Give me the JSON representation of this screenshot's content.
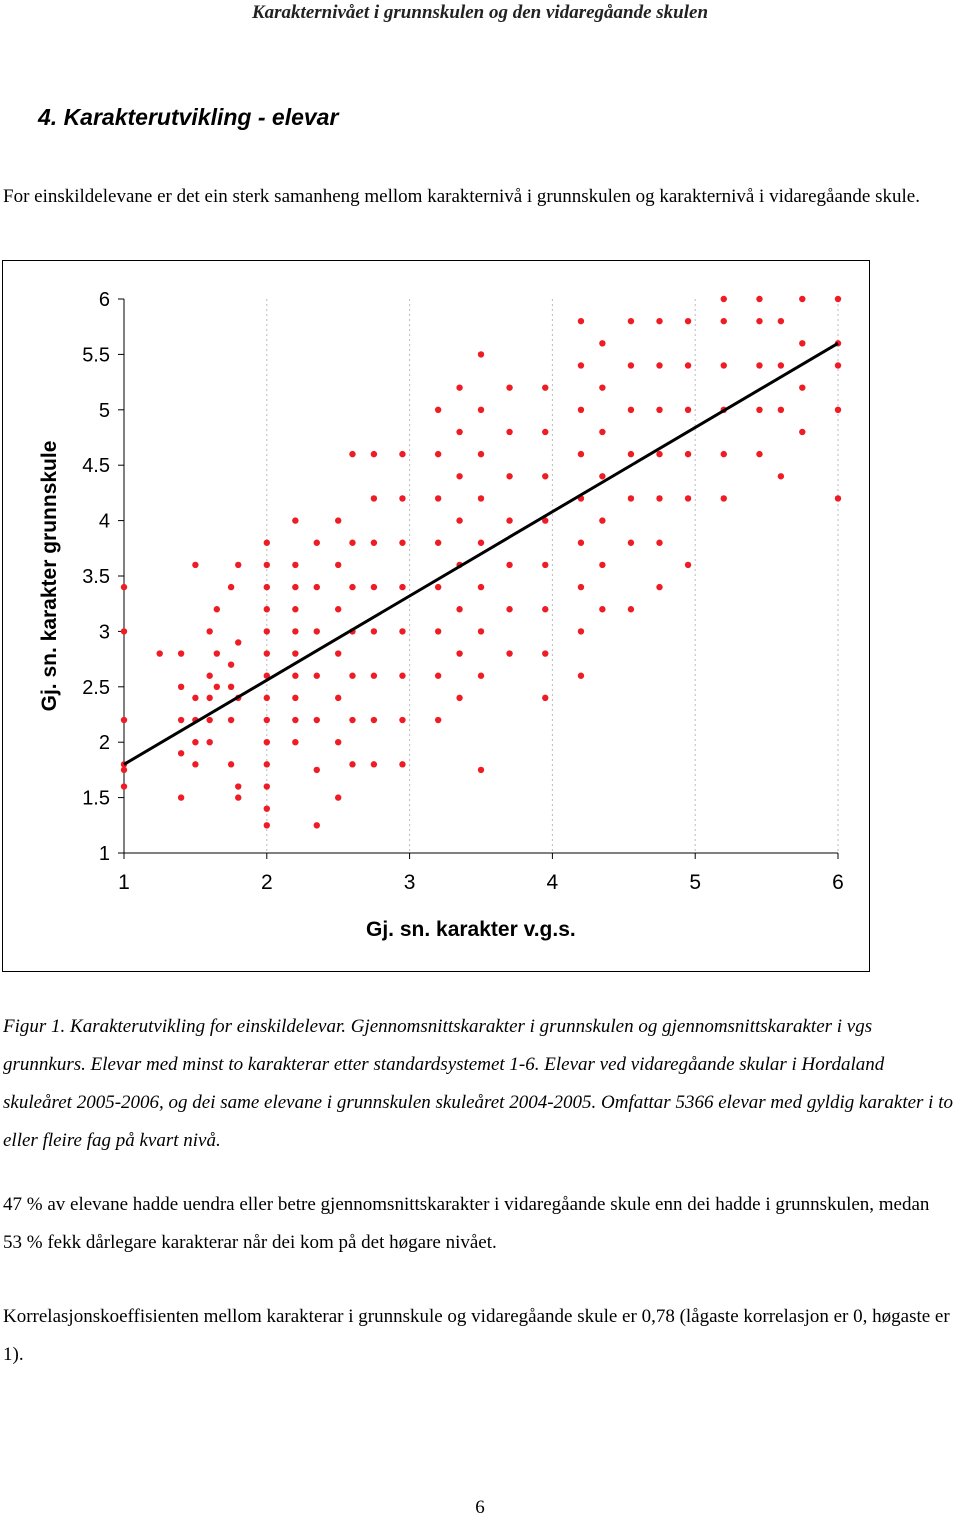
{
  "header": {
    "title": "Karakternivået i grunnskulen og den vidaregåande skulen"
  },
  "heading": "4. Karakterutvikling - elevar",
  "intro": "For einskildelevane er det ein sterk samanheng mellom karakternivå i grunnskulen og karakternivå i vidaregåande skule.",
  "chart_data": {
    "type": "scatter",
    "x_label": "Gj. sn. karakter v.g.s.",
    "y_label": "Gj. sn. karakter grunnskule",
    "xlim": [
      1,
      6
    ],
    "ylim": [
      1,
      6
    ],
    "xticks": [
      1,
      2,
      3,
      4,
      5,
      6
    ],
    "yticks": [
      1,
      1.5,
      2,
      2.5,
      3,
      3.5,
      4,
      4.5,
      5,
      5.5,
      6
    ],
    "grid": true,
    "color": "#ee1c25",
    "x": [
      1,
      1,
      1,
      1,
      1,
      1,
      1.25,
      1.4,
      1.4,
      1.4,
      1.4,
      1.4,
      1.5,
      1.5,
      1.5,
      1.5,
      1.5,
      1.6,
      1.6,
      1.6,
      1.6,
      1.6,
      1.65,
      1.65,
      1.65,
      1.75,
      1.75,
      1.75,
      1.75,
      1.75,
      1.8,
      1.8,
      1.8,
      1.8,
      1.8,
      2,
      2,
      2,
      2,
      2,
      2,
      2,
      2,
      2,
      2,
      2,
      2,
      2,
      2,
      2.2,
      2.2,
      2.2,
      2.2,
      2.2,
      2.2,
      2.2,
      2.2,
      2.2,
      2.2,
      2.35,
      2.35,
      2.35,
      2.35,
      2.35,
      2.35,
      2.35,
      2.5,
      2.5,
      2.5,
      2.5,
      2.5,
      2.5,
      2.5,
      2.6,
      2.6,
      2.6,
      2.6,
      2.6,
      2.6,
      2.6,
      2.75,
      2.75,
      2.75,
      2.75,
      2.75,
      2.75,
      2.75,
      2.75,
      2.95,
      2.95,
      2.95,
      2.95,
      2.95,
      2.95,
      2.95,
      2.95,
      3.2,
      3.2,
      3.2,
      3.2,
      3.2,
      3.2,
      3.2,
      3.2,
      3.35,
      3.35,
      3.35,
      3.35,
      3.35,
      3.35,
      3.35,
      3.35,
      3.5,
      3.5,
      3.5,
      3.5,
      3.5,
      3.5,
      3.5,
      3.5,
      3.5,
      3.7,
      3.7,
      3.7,
      3.7,
      3.7,
      3.7,
      3.7,
      3.95,
      3.95,
      3.95,
      3.95,
      3.95,
      3.95,
      3.95,
      3.95,
      4.2,
      4.2,
      4.2,
      4.2,
      4.2,
      4.2,
      4.2,
      4.2,
      4.2,
      4.35,
      4.35,
      4.35,
      4.35,
      4.35,
      4.35,
      4.35,
      4.55,
      4.55,
      4.55,
      4.55,
      4.55,
      4.55,
      4.55,
      4.75,
      4.75,
      4.75,
      4.75,
      4.75,
      4.75,
      4.75,
      4.95,
      4.95,
      4.95,
      4.95,
      4.95,
      4.95,
      5.2,
      5.2,
      5.2,
      5.2,
      5.2,
      5.2,
      5.45,
      5.45,
      5.45,
      5.45,
      5.45,
      5.6,
      5.6,
      5.6,
      5.6,
      5.75,
      5.75,
      5.75,
      5.75,
      6,
      6,
      6,
      6,
      6
    ],
    "values": [
      3.4,
      3.0,
      2.2,
      1.8,
      1.75,
      1.6,
      2.8,
      2.8,
      2.5,
      2.2,
      1.9,
      1.5,
      3.6,
      2.4,
      2.2,
      2.0,
      1.8,
      3.0,
      2.6,
      2.4,
      2.2,
      2.0,
      3.2,
      2.8,
      2.5,
      3.4,
      2.7,
      2.5,
      2.2,
      1.8,
      3.6,
      2.9,
      2.4,
      1.6,
      1.5,
      3.8,
      3.6,
      3.4,
      3.2,
      3.0,
      2.8,
      2.6,
      2.4,
      2.2,
      2.0,
      1.8,
      1.6,
      1.4,
      1.25,
      4.0,
      3.6,
      3.4,
      3.2,
      3.0,
      2.8,
      2.6,
      2.4,
      2.2,
      2.0,
      3.8,
      3.4,
      3.0,
      2.6,
      2.2,
      1.75,
      1.25,
      4.0,
      3.6,
      3.2,
      2.8,
      2.4,
      2.0,
      1.5,
      4.6,
      3.8,
      3.4,
      3.0,
      2.6,
      2.2,
      1.8,
      4.6,
      4.2,
      3.8,
      3.4,
      3.0,
      2.6,
      2.2,
      1.8,
      4.6,
      4.2,
      3.8,
      3.4,
      3.0,
      2.6,
      2.2,
      1.8,
      5.0,
      4.6,
      4.2,
      3.8,
      3.4,
      3.0,
      2.6,
      2.2,
      5.2,
      4.8,
      4.4,
      4.0,
      3.6,
      3.2,
      2.8,
      2.4,
      5.5,
      5.0,
      4.6,
      4.2,
      3.8,
      3.4,
      3.0,
      2.6,
      1.75,
      5.2,
      4.8,
      4.4,
      4.0,
      3.6,
      3.2,
      2.8,
      5.2,
      4.8,
      4.4,
      4.0,
      3.6,
      3.2,
      2.8,
      2.4,
      5.8,
      5.4,
      5.0,
      4.6,
      4.2,
      3.8,
      3.4,
      3.0,
      2.6,
      5.6,
      5.2,
      4.8,
      4.4,
      4.0,
      3.6,
      3.2,
      5.8,
      5.4,
      5.0,
      4.6,
      4.2,
      3.8,
      3.2,
      5.8,
      5.4,
      5.0,
      4.6,
      4.2,
      3.8,
      3.4,
      5.8,
      5.4,
      5.0,
      4.6,
      4.2,
      3.6,
      6.0,
      5.8,
      5.4,
      5.0,
      4.6,
      4.2,
      6.0,
      5.8,
      5.4,
      5.0,
      4.6,
      5.8,
      5.4,
      5.0,
      4.4,
      6.0,
      5.6,
      5.2,
      4.8,
      6.0,
      5.6,
      5.4,
      5.0,
      4.2
    ],
    "trendline": {
      "x": [
        1,
        6
      ],
      "values": [
        1.8,
        5.6
      ],
      "color": "#000000"
    }
  },
  "caption": "Figur 1. Karakterutvikling for einskildelevar. Gjennomsnittskarakter i grunnskulen og gjennomsnittskarakter i vgs grunnkurs. Elevar med minst to karakterar etter standardsystemet 1-6. Elevar ved vidaregåande skular i Hordaland skuleåret 2005-2006, og dei same elevane i grunnskulen skuleåret 2004-2005. Omfattar 5366 elevar med gyldig karakter i to eller fleire fag på kvart nivå.",
  "paragraphs": [
    "47 % av elevane hadde uendra eller betre gjennomsnittskarakter i vidaregåande skule enn dei hadde i grunnskulen, medan 53 % fekk dårlegare karakterar når dei kom på det høgare nivået.",
    "Korrelasjonskoeffisienten mellom karakterar i grunnskule og vidaregåande skule er 0,78 (lågaste korrelasjon er 0, høgaste er 1)."
  ],
  "page_number": "6"
}
